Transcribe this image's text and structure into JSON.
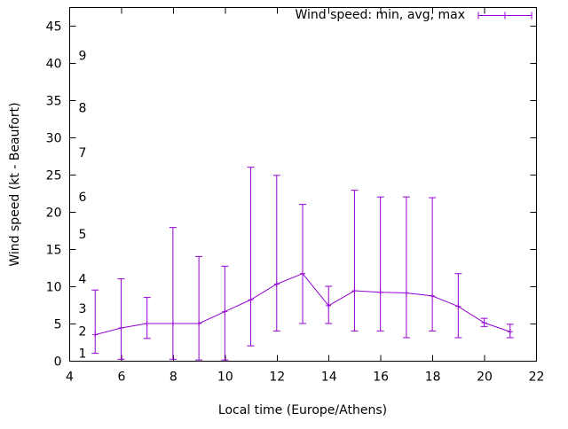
{
  "chart_data": {
    "type": "line",
    "legend_label": "Wind speed: min, avg, max",
    "xlabel": "Local time (Europe/Athens)",
    "ylabel": "Wind speed (kt - Beaufort)",
    "xlim": [
      4,
      22
    ],
    "ylim": [
      0,
      47.5
    ],
    "x_ticks": [
      4,
      6,
      8,
      10,
      12,
      14,
      16,
      18,
      20,
      22
    ],
    "y_ticks_kt": [
      0,
      5,
      10,
      15,
      20,
      25,
      30,
      35,
      40,
      45
    ],
    "beaufort_scale": [
      {
        "beaufort": 1,
        "kt": 1
      },
      {
        "beaufort": 2,
        "kt": 4
      },
      {
        "beaufort": 3,
        "kt": 7
      },
      {
        "beaufort": 4,
        "kt": 11
      },
      {
        "beaufort": 5,
        "kt": 17
      },
      {
        "beaufort": 6,
        "kt": 22
      },
      {
        "beaufort": 7,
        "kt": 28
      },
      {
        "beaufort": 8,
        "kt": 34
      },
      {
        "beaufort": 9,
        "kt": 41
      }
    ],
    "series": [
      {
        "name": "Wind speed: min, avg, max",
        "color": "#9400d3",
        "points": [
          {
            "x": 5,
            "avg": 3.5,
            "min": 1.0,
            "max": 9.5
          },
          {
            "x": 6,
            "avg": 4.4,
            "min": 0.2,
            "max": 11.0
          },
          {
            "x": 7,
            "avg": 5.0,
            "min": 3.0,
            "max": 8.5
          },
          {
            "x": 8,
            "avg": 5.0,
            "min": 0.2,
            "max": 17.9
          },
          {
            "x": 9,
            "avg": 5.0,
            "min": 0.1,
            "max": 14.0
          },
          {
            "x": 10,
            "avg": 6.6,
            "min": 0.1,
            "max": 12.7
          },
          {
            "x": 11,
            "avg": 8.2,
            "min": 2.0,
            "max": 26.0
          },
          {
            "x": 12,
            "avg": 10.3,
            "min": 4.0,
            "max": 24.9
          },
          {
            "x": 13,
            "avg": 11.7,
            "min": 5.0,
            "max": 21.0
          },
          {
            "x": 14,
            "avg": 7.4,
            "min": 5.0,
            "max": 10.0
          },
          {
            "x": 15,
            "avg": 9.4,
            "min": 4.0,
            "max": 22.9
          },
          {
            "x": 16,
            "avg": 9.2,
            "min": 4.0,
            "max": 22.0
          },
          {
            "x": 17,
            "avg": 9.1,
            "min": 3.1,
            "max": 22.0
          },
          {
            "x": 18,
            "avg": 8.7,
            "min": 4.0,
            "max": 21.9
          },
          {
            "x": 19,
            "avg": 7.3,
            "min": 3.1,
            "max": 11.7
          },
          {
            "x": 20,
            "avg": 5.1,
            "min": 4.6,
            "max": 5.7
          },
          {
            "x": 21,
            "avg": 3.9,
            "min": 3.1,
            "max": 4.9
          }
        ]
      }
    ],
    "axis_color": "#000000",
    "background": "#ffffff"
  }
}
